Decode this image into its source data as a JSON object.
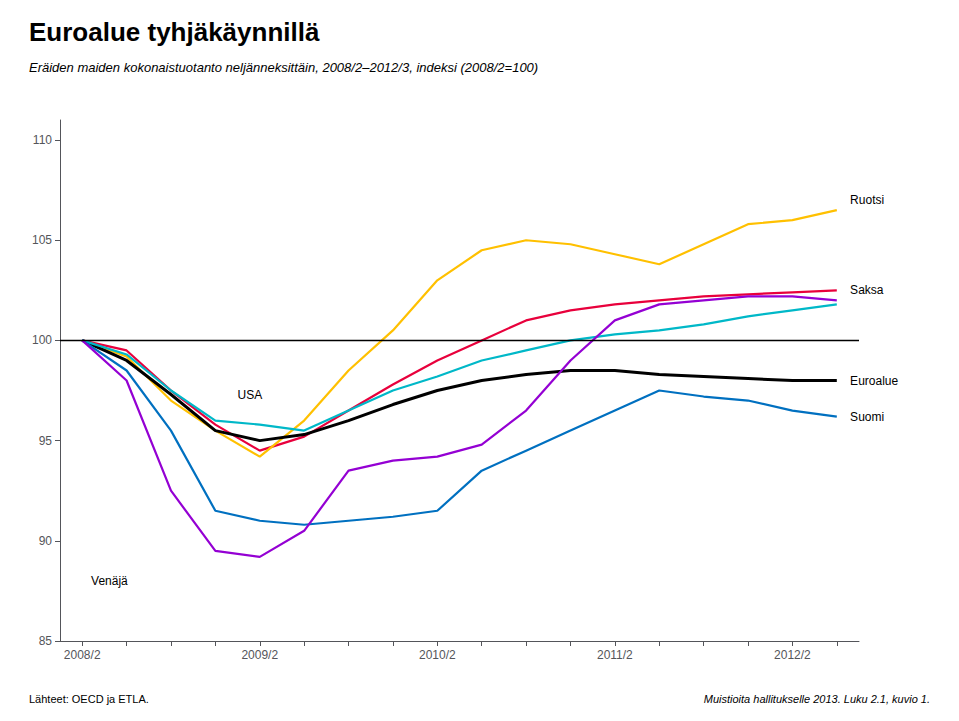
{
  "chart_data": {
    "type": "line",
    "title": "Euroalue tyhjäkäynnillä",
    "subtitle": "Eräiden maiden kokonaistuotanto neljänneksittäin, 2008/2–2012/3, indeksi (2008/2=100)",
    "annotations": [
      "Lähteet: OECD ja ETLA.",
      "Muistioita hallitukselle 2013. Luku 2.1, kuvio 1."
    ],
    "categories": [
      "2008/2",
      null,
      null,
      null,
      "2009/2",
      null,
      null,
      null,
      "2010/2",
      null,
      null,
      null,
      "2011/2",
      null,
      null,
      null,
      "2012/2",
      null
    ],
    "series": [
      {
        "name": "Saksa",
        "color": "#e8003c",
        "values": [
          100,
          99.5,
          97.5,
          95.8,
          94.5,
          95.2,
          96.5,
          97.8,
          99.0,
          100.0,
          101.0,
          101.5,
          101.8,
          102.0,
          102.2,
          102.3,
          102.4,
          102.5
        ]
      },
      {
        "name": "Ruotsi",
        "color": "#ffc000",
        "values": [
          100,
          99.2,
          97.0,
          95.5,
          94.2,
          96.0,
          98.5,
          100.5,
          103.0,
          104.5,
          105.0,
          104.8,
          104.3,
          103.8,
          104.8,
          105.8,
          106.0,
          106.5
        ]
      },
      {
        "name": "Euroalue",
        "color": "#000000",
        "values": [
          100,
          99.0,
          97.3,
          95.5,
          95.0,
          95.3,
          96.0,
          96.8,
          97.5,
          98.0,
          98.3,
          98.5,
          98.5,
          98.3,
          98.2,
          98.1,
          98.0,
          98.0
        ]
      },
      {
        "name": "USA",
        "color": "#00b8c8",
        "values": [
          100,
          99.3,
          97.5,
          96.0,
          95.8,
          95.5,
          96.5,
          97.5,
          98.2,
          99.0,
          99.5,
          100.0,
          100.3,
          100.5,
          100.8,
          101.2,
          101.5,
          101.8
        ]
      },
      {
        "name": "Suomi",
        "color": "#0070c0",
        "values": [
          100,
          98.5,
          95.5,
          91.5,
          91.0,
          90.8,
          91.0,
          91.2,
          91.5,
          93.5,
          94.5,
          95.5,
          96.5,
          97.5,
          97.2,
          97.0,
          96.5,
          96.2
        ]
      },
      {
        "name": "Venäjä",
        "color": "#9400d3",
        "values": [
          100,
          98.0,
          92.5,
          89.5,
          89.2,
          90.5,
          93.5,
          94.0,
          94.2,
          94.8,
          96.5,
          99.0,
          101.0,
          101.8,
          102.0,
          102.2,
          102.2,
          102.0
        ]
      }
    ],
    "hline": 100,
    "ylim": [
      85,
      111
    ],
    "yticks": [
      85,
      90,
      95,
      100,
      105,
      110
    ],
    "grid": false
  }
}
